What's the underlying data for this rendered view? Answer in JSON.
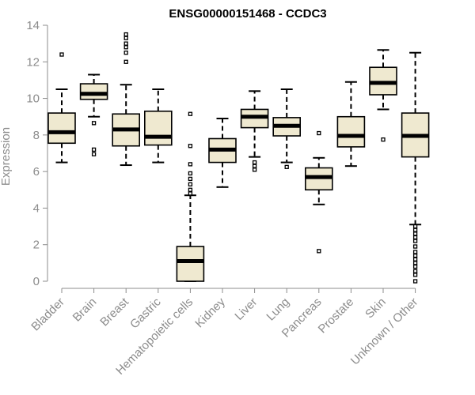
{
  "chart_data": {
    "type": "boxplot",
    "title": "ENSG00000151468 - CCDC3",
    "ylabel": "Expression",
    "ylim": [
      0,
      14
    ],
    "yticks": [
      0,
      2,
      4,
      6,
      8,
      10,
      12,
      14
    ],
    "colors": {
      "box_fill": "#efe9d0",
      "box_stroke": "#000000",
      "axis": "#8c8c8c"
    },
    "categories": [
      "Bladder",
      "Brain",
      "Breast",
      "Gastric",
      "Hematopoietic cells",
      "Kidney",
      "Liver",
      "Lung",
      "Pancreas",
      "Prostate",
      "Skin",
      "Unknown / Other"
    ],
    "boxes": [
      {
        "name": "Bladder",
        "whisker_low": 6.5,
        "q1": 7.55,
        "median": 8.15,
        "q3": 9.2,
        "whisker_high": 10.5,
        "outliers": [
          12.4
        ]
      },
      {
        "name": "Brain",
        "whisker_low": 9.0,
        "q1": 9.95,
        "median": 10.25,
        "q3": 10.8,
        "whisker_high": 11.3,
        "outliers": [
          8.65,
          7.2,
          6.95
        ]
      },
      {
        "name": "Breast",
        "whisker_low": 6.35,
        "q1": 7.4,
        "median": 8.3,
        "q3": 9.15,
        "whisker_high": 10.75,
        "outliers": [
          12.0,
          12.5,
          12.8,
          13.0,
          13.3,
          13.5
        ]
      },
      {
        "name": "Gastric",
        "whisker_low": 6.5,
        "q1": 7.45,
        "median": 7.9,
        "q3": 9.3,
        "whisker_high": 10.5,
        "outliers": []
      },
      {
        "name": "Hematopoietic cells",
        "whisker_low": 0.0,
        "q1": 0.0,
        "median": 1.1,
        "q3": 1.9,
        "whisker_high": 4.7,
        "outliers": [
          4.8,
          5.0,
          5.3,
          5.6,
          5.9,
          6.4,
          7.4,
          9.15
        ]
      },
      {
        "name": "Kidney",
        "whisker_low": 5.15,
        "q1": 6.5,
        "median": 7.2,
        "q3": 7.8,
        "whisker_high": 8.9,
        "outliers": []
      },
      {
        "name": "Liver",
        "whisker_low": 6.8,
        "q1": 8.4,
        "median": 9.0,
        "q3": 9.4,
        "whisker_high": 10.4,
        "outliers": [
          6.5,
          6.3,
          6.1
        ]
      },
      {
        "name": "Lung",
        "whisker_low": 6.5,
        "q1": 7.95,
        "median": 8.5,
        "q3": 8.95,
        "whisker_high": 10.5,
        "outliers": [
          6.25
        ]
      },
      {
        "name": "Pancreas",
        "whisker_low": 4.2,
        "q1": 5.0,
        "median": 5.7,
        "q3": 6.2,
        "whisker_high": 6.75,
        "outliers": [
          8.1,
          1.65
        ]
      },
      {
        "name": "Prostate",
        "whisker_low": 6.3,
        "q1": 7.35,
        "median": 7.95,
        "q3": 9.0,
        "whisker_high": 10.9,
        "outliers": []
      },
      {
        "name": "Skin",
        "whisker_low": 9.4,
        "q1": 10.2,
        "median": 10.85,
        "q3": 11.7,
        "whisker_high": 12.65,
        "outliers": [
          7.75
        ]
      },
      {
        "name": "Unknown / Other",
        "whisker_low": 3.1,
        "q1": 6.8,
        "median": 7.95,
        "q3": 9.2,
        "whisker_high": 12.5,
        "outliers": [
          3.0,
          2.8,
          2.6,
          2.4,
          2.2,
          1.9,
          1.6,
          1.4,
          1.2,
          1.0,
          0.8,
          0.55,
          0.35,
          0.0
        ]
      }
    ]
  }
}
